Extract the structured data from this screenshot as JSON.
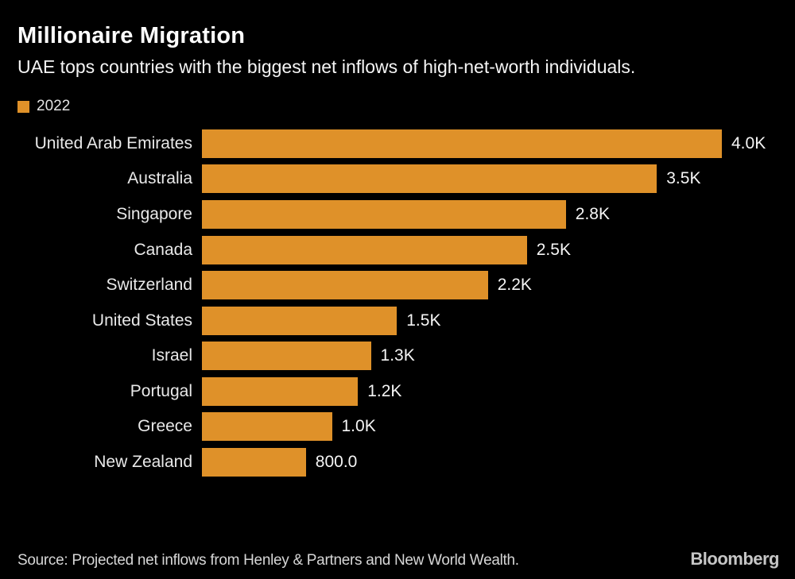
{
  "header": {
    "title": "Millionaire Migration",
    "subtitle": "UAE tops countries with the biggest net inflows of high-net-worth individuals."
  },
  "legend": {
    "label": "2022",
    "swatch_color": "#df9129"
  },
  "chart_data": {
    "type": "bar",
    "orientation": "horizontal",
    "title": "Millionaire Migration",
    "subtitle": "UAE tops countries with the biggest net inflows of high-net-worth individuals.",
    "legend_entries": [
      "2022"
    ],
    "legend_position": "top-left",
    "grid": false,
    "xlim": [
      0,
      4000
    ],
    "bar_color": "#df9129",
    "categories": [
      "United Arab Emirates",
      "Australia",
      "Singapore",
      "Canada",
      "Switzerland",
      "United States",
      "Israel",
      "Portugal",
      "Greece",
      "New Zealand"
    ],
    "values": [
      4000,
      3500,
      2800,
      2500,
      2200,
      1500,
      1300,
      1200,
      1000,
      800
    ],
    "value_labels": [
      "4.0K",
      "3.5K",
      "2.8K",
      "2.5K",
      "2.2K",
      "1.5K",
      "1.3K",
      "1.2K",
      "1.0K",
      "800.0"
    ]
  },
  "colors": {
    "background": "#000000",
    "bar": "#df9129",
    "title_text": "#ffffff",
    "category_text": "#e9e9e9",
    "value_text": "#f5f5f5",
    "source_text": "#d6d6d6",
    "brand_text": "#c6c6c6"
  },
  "footer": {
    "source": "Source: Projected net inflows from Henley & Partners and New World Wealth.",
    "brand": "Bloomberg"
  }
}
